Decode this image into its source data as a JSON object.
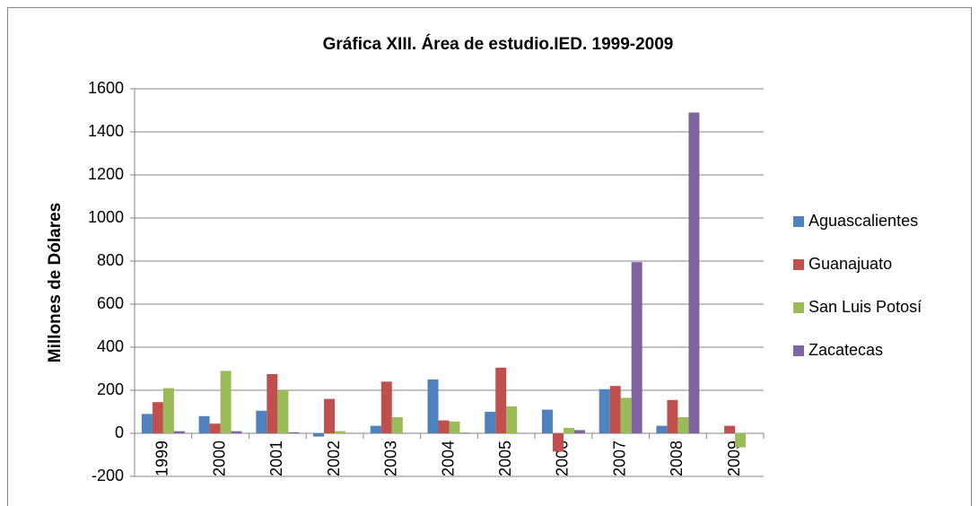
{
  "chart_data": {
    "type": "bar",
    "title": "Gráfica XIII. Área de estudio.IED. 1999-2009",
    "y_label": "Millones de Dólares",
    "categories": [
      "1999",
      "2000",
      "2001",
      "2002",
      "2003",
      "2004",
      "2005",
      "2006",
      "2007",
      "2008",
      "2009"
    ],
    "series": [
      {
        "name": "Aguascalientes",
        "color": "#4f81bd",
        "values": [
          90,
          80,
          105,
          -15,
          35,
          250,
          100,
          110,
          205,
          35,
          0
        ]
      },
      {
        "name": "Guanajuato",
        "color": "#c0504d",
        "values": [
          145,
          45,
          275,
          160,
          240,
          60,
          305,
          -85,
          220,
          155,
          35
        ]
      },
      {
        "name": "San Luis Potosí",
        "color": "#9bbb59",
        "values": [
          210,
          290,
          200,
          10,
          75,
          55,
          125,
          25,
          165,
          75,
          -65
        ]
      },
      {
        "name": "Zacatecas",
        "color": "#8064a2",
        "values": [
          10,
          10,
          5,
          2,
          2,
          3,
          2,
          15,
          795,
          1490,
          0
        ]
      }
    ],
    "ylim": [
      -200,
      1600
    ],
    "yticks": [
      -200,
      0,
      200,
      400,
      600,
      800,
      1000,
      1200,
      1400,
      1600
    ],
    "grid": true,
    "legend": "right"
  }
}
